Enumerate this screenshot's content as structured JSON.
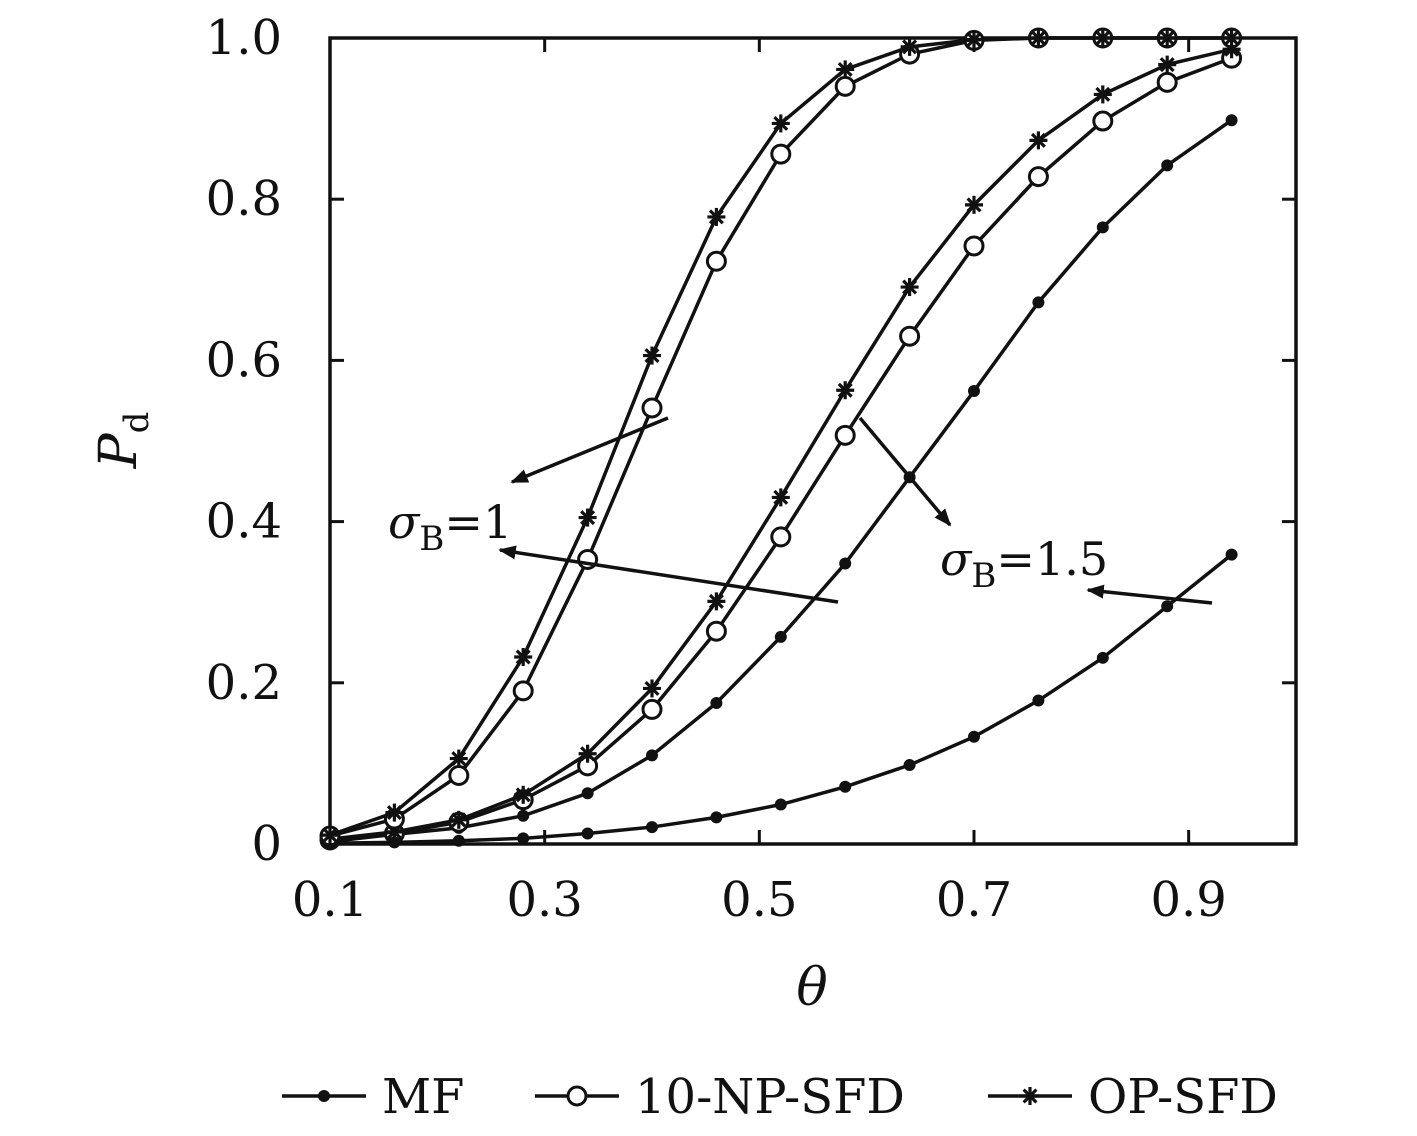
{
  "chart_data": {
    "type": "line",
    "xlabel": "θ",
    "ylabel": "P",
    "ylabel_sub": "d",
    "xlim": [
      0.1,
      1.0
    ],
    "ylim": [
      0,
      1.0
    ],
    "xticks": [
      0.1,
      0.3,
      0.5,
      0.7,
      0.9
    ],
    "xtick_labels": [
      "0.1",
      "0.3",
      "0.5",
      "0.7",
      "0.9"
    ],
    "yticks": [
      0,
      0.2,
      0.4,
      0.6,
      0.8,
      1.0
    ],
    "ytick_labels": [
      "0",
      "0.2",
      "0.4",
      "0.6",
      "0.8",
      "1.0"
    ],
    "grid": false,
    "legend_position": "bottom",
    "x": [
      0.1,
      0.16,
      0.22,
      0.28,
      0.34,
      0.4,
      0.46,
      0.52,
      0.58,
      0.64,
      0.7,
      0.76,
      0.82,
      0.88,
      0.94
    ],
    "series": [
      {
        "name": "MF",
        "group": "σB=1",
        "marker": "dot",
        "values": [
          0.003,
          0.012,
          0.02,
          0.035,
          0.063,
          0.11,
          0.175,
          0.257,
          0.348,
          0.455,
          0.562,
          0.672,
          0.765,
          0.842,
          0.898
        ]
      },
      {
        "name": "10-NP-SFD",
        "group": "σB=1",
        "marker": "circle",
        "values": [
          0.005,
          0.013,
          0.027,
          0.055,
          0.097,
          0.167,
          0.264,
          0.381,
          0.507,
          0.63,
          0.742,
          0.828,
          0.897,
          0.945,
          0.975
        ]
      },
      {
        "name": "OP-SFD",
        "group": "σB=1",
        "marker": "star",
        "values": [
          0.006,
          0.015,
          0.03,
          0.061,
          0.112,
          0.193,
          0.301,
          0.43,
          0.563,
          0.691,
          0.793,
          0.873,
          0.93,
          0.967,
          0.986
        ]
      },
      {
        "name": "MF",
        "group": "σB=1.5",
        "marker": "dot",
        "values": [
          0.001,
          0.002,
          0.004,
          0.007,
          0.013,
          0.021,
          0.033,
          0.049,
          0.071,
          0.098,
          0.133,
          0.178,
          0.231,
          0.295,
          0.359
        ]
      },
      {
        "name": "10-NP-SFD",
        "group": "σB=1.5",
        "marker": "circle",
        "values": [
          0.01,
          0.031,
          0.085,
          0.19,
          0.353,
          0.541,
          0.723,
          0.856,
          0.94,
          0.98,
          0.997,
          1.0,
          1.0,
          1.0,
          1.0
        ]
      },
      {
        "name": "OP-SFD",
        "group": "σB=1.5",
        "marker": "star",
        "values": [
          0.011,
          0.039,
          0.106,
          0.232,
          0.405,
          0.606,
          0.778,
          0.894,
          0.961,
          0.989,
          0.998,
          1.0,
          1.0,
          1.0,
          1.0
        ]
      }
    ],
    "annotations": [
      {
        "text": "σ",
        "sub": "B",
        "suffix": "=1"
      },
      {
        "text": "σ",
        "sub": "B",
        "suffix": "=1.5"
      }
    ]
  },
  "legend": [
    {
      "label": "MF",
      "marker": "dot"
    },
    {
      "label": "10-NP-SFD",
      "marker": "circle"
    },
    {
      "label": "OP-SFD",
      "marker": "star"
    }
  ]
}
